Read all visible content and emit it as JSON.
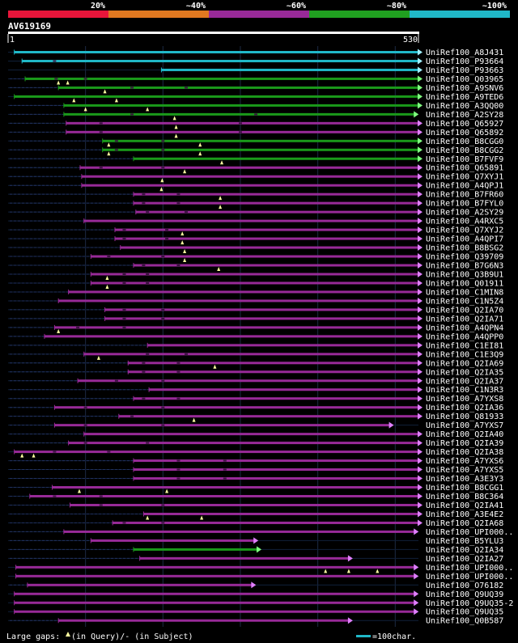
{
  "chart_data": {
    "type": "blast-alignment-overview",
    "query": {
      "name": "AV619169",
      "start_label": "1",
      "end_label": "530",
      "length": 530
    },
    "identity_bins": [
      {
        "label": "20%",
        "color": "#e8153a"
      },
      {
        "label": "~40%",
        "color": "#e07820"
      },
      {
        "label": "~60%",
        "color": "#982a98"
      },
      {
        "label": "~80%",
        "color": "#20a020"
      },
      {
        "label": "~100%",
        "color": "#20b8c8"
      }
    ],
    "hits": [
      {
        "name": "UniRef100_A8J431",
        "qstart": 8,
        "qend": 530,
        "color": "cyan",
        "dashed_left": false,
        "right_arrow": true,
        "gaps": [],
        "breaks": []
      },
      {
        "name": "UniRef100_P93664",
        "qstart": 18,
        "qend": 530,
        "color": "cyan",
        "dashed_left": false,
        "right_arrow": true,
        "gaps": [],
        "breaks": [
          60
        ]
      },
      {
        "name": "UniRef100_P93663",
        "qstart": 198,
        "qend": 530,
        "color": "cyan",
        "dashed_left": false,
        "right_arrow": true,
        "gaps": [],
        "breaks": []
      },
      {
        "name": "UniRef100_Q03965",
        "qstart": 22,
        "qend": 530,
        "color": "green",
        "dashed_left": true,
        "right_arrow": true,
        "gaps": [
          65,
          77
        ],
        "breaks": [
          62,
          100
        ]
      },
      {
        "name": "UniRef100_A9SNV6",
        "qstart": 65,
        "qend": 530,
        "color": "green",
        "dashed_left": true,
        "right_arrow": true,
        "gaps": [
          125
        ],
        "breaks": [
          160,
          230
        ]
      },
      {
        "name": "UniRef100_A9TED6",
        "qstart": 8,
        "qend": 530,
        "color": "green",
        "dashed_left": true,
        "right_arrow": true,
        "gaps": [
          85,
          140
        ],
        "breaks": []
      },
      {
        "name": "UniRef100_A3QQ00",
        "qstart": 72,
        "qend": 530,
        "color": "green",
        "dashed_left": true,
        "right_arrow": true,
        "gaps": [
          100,
          180
        ],
        "breaks": []
      },
      {
        "name": "UniRef100_A2SY28",
        "qstart": 72,
        "qend": 525,
        "color": "green",
        "dashed_left": true,
        "right_arrow": true,
        "gaps": [
          215
        ],
        "breaks": [
          160,
          320
        ]
      },
      {
        "name": "UniRef100_Q65927",
        "qstart": 75,
        "qend": 530,
        "color": "magenta",
        "dashed_left": true,
        "right_arrow": true,
        "gaps": [
          217
        ],
        "breaks": [
          120,
          300
        ]
      },
      {
        "name": "UniRef100_Q65892",
        "qstart": 75,
        "qend": 530,
        "color": "magenta",
        "dashed_left": true,
        "right_arrow": true,
        "gaps": [
          217
        ],
        "breaks": [
          120,
          300
        ]
      },
      {
        "name": "UniRef100_B8CGG0",
        "qstart": 122,
        "qend": 530,
        "color": "green",
        "dashed_left": true,
        "right_arrow": true,
        "gaps": [
          130,
          248
        ],
        "breaks": [
          140,
          200
        ]
      },
      {
        "name": "UniRef100_B8CGG2",
        "qstart": 122,
        "qend": 530,
        "color": "green",
        "dashed_left": true,
        "right_arrow": true,
        "gaps": [
          130,
          248
        ],
        "breaks": [
          140,
          200
        ]
      },
      {
        "name": "UniRef100_B7FVF9",
        "qstart": 162,
        "qend": 530,
        "color": "green",
        "dashed_left": true,
        "right_arrow": true,
        "gaps": [
          276
        ],
        "breaks": []
      },
      {
        "name": "UniRef100_Q65891",
        "qstart": 93,
        "qend": 530,
        "color": "magenta",
        "dashed_left": true,
        "right_arrow": true,
        "gaps": [
          228
        ],
        "breaks": [
          120,
          200
        ]
      },
      {
        "name": "UniRef100_Q7XYJ1",
        "qstart": 95,
        "qend": 530,
        "color": "magenta",
        "dashed_left": true,
        "right_arrow": true,
        "gaps": [
          199
        ],
        "breaks": []
      },
      {
        "name": "UniRef100_A4QPJ1",
        "qstart": 95,
        "qend": 530,
        "color": "magenta",
        "dashed_left": true,
        "right_arrow": true,
        "gaps": [
          198
        ],
        "breaks": []
      },
      {
        "name": "UniRef100_B7FR60",
        "qstart": 162,
        "qend": 530,
        "color": "magenta",
        "dashed_left": true,
        "right_arrow": true,
        "gaps": [
          274
        ],
        "breaks": [
          175,
          220
        ]
      },
      {
        "name": "UniRef100_B7FYL0",
        "qstart": 162,
        "qend": 530,
        "color": "magenta",
        "dashed_left": true,
        "right_arrow": true,
        "gaps": [
          274
        ],
        "breaks": [
          175,
          220
        ]
      },
      {
        "name": "UniRef100_A2SY29",
        "qstart": 165,
        "qend": 530,
        "color": "magenta",
        "dashed_left": true,
        "right_arrow": true,
        "gaps": [],
        "breaks": [
          180,
          230
        ]
      },
      {
        "name": "UniRef100_A4RXC5",
        "qstart": 98,
        "qend": 530,
        "color": "magenta",
        "dashed_left": true,
        "right_arrow": true,
        "gaps": [],
        "breaks": []
      },
      {
        "name": "UniRef100_Q7XYJ2",
        "qstart": 138,
        "qend": 530,
        "color": "magenta",
        "dashed_left": true,
        "right_arrow": true,
        "gaps": [
          225
        ],
        "breaks": [
          150,
          205
        ]
      },
      {
        "name": "UniRef100_A4QPI7",
        "qstart": 138,
        "qend": 530,
        "color": "magenta",
        "dashed_left": true,
        "right_arrow": true,
        "gaps": [
          225
        ],
        "breaks": [
          150,
          205
        ]
      },
      {
        "name": "UniRef100_B8BSG2",
        "qstart": 145,
        "qend": 530,
        "color": "magenta",
        "dashed_left": true,
        "right_arrow": true,
        "gaps": [
          228
        ],
        "breaks": []
      },
      {
        "name": "UniRef100_Q39709",
        "qstart": 107,
        "qend": 530,
        "color": "magenta",
        "dashed_left": true,
        "right_arrow": true,
        "gaps": [
          228
        ],
        "breaks": [
          130,
          200
        ]
      },
      {
        "name": "UniRef100_B7G6N3",
        "qstart": 162,
        "qend": 530,
        "color": "magenta",
        "dashed_left": true,
        "right_arrow": true,
        "gaps": [
          272
        ],
        "breaks": [
          175,
          220
        ]
      },
      {
        "name": "UniRef100_Q3B9U1",
        "qstart": 107,
        "qend": 530,
        "color": "magenta",
        "dashed_left": true,
        "right_arrow": true,
        "gaps": [
          128
        ],
        "breaks": [
          150,
          180
        ]
      },
      {
        "name": "UniRef100_Q01911",
        "qstart": 107,
        "qend": 530,
        "color": "magenta",
        "dashed_left": true,
        "right_arrow": true,
        "gaps": [
          128
        ],
        "breaks": [
          150,
          180
        ]
      },
      {
        "name": "UniRef100_C1MIN8",
        "qstart": 78,
        "qend": 530,
        "color": "magenta",
        "dashed_left": true,
        "right_arrow": true,
        "gaps": [],
        "breaks": []
      },
      {
        "name": "UniRef100_C1N5Z4",
        "qstart": 65,
        "qend": 530,
        "color": "magenta",
        "dashed_left": true,
        "right_arrow": true,
        "gaps": [],
        "breaks": []
      },
      {
        "name": "UniRef100_Q2IA70",
        "qstart": 125,
        "qend": 530,
        "color": "magenta",
        "dashed_left": true,
        "right_arrow": true,
        "gaps": [],
        "breaks": [
          150,
          200
        ]
      },
      {
        "name": "UniRef100_Q2IA71",
        "qstart": 125,
        "qend": 530,
        "color": "magenta",
        "dashed_left": true,
        "right_arrow": true,
        "gaps": [],
        "breaks": [
          150,
          200
        ]
      },
      {
        "name": "UniRef100_A4QPN4",
        "qstart": 60,
        "qend": 530,
        "color": "magenta",
        "dashed_left": true,
        "right_arrow": true,
        "gaps": [
          65
        ],
        "breaks": [
          90,
          150
        ]
      },
      {
        "name": "UniRef100_A4QPP0",
        "qstart": 47,
        "qend": 530,
        "color": "magenta",
        "dashed_left": true,
        "right_arrow": true,
        "gaps": [],
        "breaks": []
      },
      {
        "name": "UniRef100_C1EI81",
        "qstart": 180,
        "qend": 530,
        "color": "magenta",
        "dashed_left": true,
        "right_arrow": true,
        "gaps": [],
        "breaks": []
      },
      {
        "name": "UniRef100_C1E3Q9",
        "qstart": 98,
        "qend": 530,
        "color": "magenta",
        "dashed_left": true,
        "right_arrow": true,
        "gaps": [
          117
        ],
        "breaks": [
          180,
          230
        ]
      },
      {
        "name": "UniRef100_Q2IA69",
        "qstart": 155,
        "qend": 530,
        "color": "magenta",
        "dashed_left": true,
        "right_arrow": true,
        "gaps": [
          267
        ],
        "breaks": [
          175,
          220
        ]
      },
      {
        "name": "UniRef100_Q2IA35",
        "qstart": 155,
        "qend": 530,
        "color": "magenta",
        "dashed_left": true,
        "right_arrow": true,
        "gaps": [],
        "breaks": [
          175,
          220
        ]
      },
      {
        "name": "UniRef100_Q2IA37",
        "qstart": 90,
        "qend": 530,
        "color": "magenta",
        "dashed_left": true,
        "right_arrow": true,
        "gaps": [],
        "breaks": [
          140,
          200
        ]
      },
      {
        "name": "UniRef100_C1N3R3",
        "qstart": 182,
        "qend": 530,
        "color": "magenta",
        "dashed_left": true,
        "right_arrow": true,
        "gaps": [],
        "breaks": []
      },
      {
        "name": "UniRef100_A7YXS8",
        "qstart": 162,
        "qend": 530,
        "color": "magenta",
        "dashed_left": true,
        "right_arrow": true,
        "gaps": [],
        "breaks": [
          175,
          220
        ]
      },
      {
        "name": "UniRef100_Q2IA36",
        "qstart": 60,
        "qend": 530,
        "color": "magenta",
        "dashed_left": true,
        "right_arrow": true,
        "gaps": [],
        "breaks": [
          100,
          200
        ]
      },
      {
        "name": "UniRef100_Q81933",
        "qstart": 143,
        "qend": 530,
        "color": "magenta",
        "dashed_left": true,
        "right_arrow": true,
        "gaps": [
          240
        ],
        "breaks": [
          160
        ]
      },
      {
        "name": "UniRef100_A7YXS7",
        "qstart": 60,
        "qend": 493,
        "color": "magenta",
        "dashed_left": true,
        "right_arrow": true,
        "gaps": [],
        "breaks": [
          100,
          200
        ]
      },
      {
        "name": "UniRef100_Q2IA40",
        "qstart": 98,
        "qend": 530,
        "color": "magenta",
        "dashed_left": true,
        "right_arrow": true,
        "gaps": [],
        "breaks": []
      },
      {
        "name": "UniRef100_Q2IA39",
        "qstart": 78,
        "qend": 530,
        "color": "magenta",
        "dashed_left": true,
        "right_arrow": true,
        "gaps": [],
        "breaks": [
          100,
          180
        ]
      },
      {
        "name": "UniRef100_Q2IA38",
        "qstart": 8,
        "qend": 530,
        "color": "magenta",
        "dashed_left": false,
        "right_arrow": true,
        "gaps": [
          18,
          33
        ],
        "breaks": [
          60,
          130
        ]
      },
      {
        "name": "UniRef100_A7YXS6",
        "qstart": 162,
        "qend": 530,
        "color": "magenta",
        "dashed_left": true,
        "right_arrow": true,
        "gaps": [],
        "breaks": [
          220,
          280
        ]
      },
      {
        "name": "UniRef100_A7YXS5",
        "qstart": 162,
        "qend": 530,
        "color": "magenta",
        "dashed_left": true,
        "right_arrow": true,
        "gaps": [],
        "breaks": [
          220,
          280
        ]
      },
      {
        "name": "UniRef100_A3E3Y3",
        "qstart": 162,
        "qend": 530,
        "color": "magenta",
        "dashed_left": true,
        "right_arrow": true,
        "gaps": [],
        "breaks": [
          220,
          280
        ]
      },
      {
        "name": "UniRef100_B8CGG1",
        "qstart": 57,
        "qend": 530,
        "color": "magenta",
        "dashed_left": true,
        "right_arrow": true,
        "gaps": [
          92,
          205
        ],
        "breaks": []
      },
      {
        "name": "UniRef100_B8C364",
        "qstart": 28,
        "qend": 530,
        "color": "magenta",
        "dashed_left": true,
        "right_arrow": true,
        "gaps": [],
        "breaks": [
          60,
          120
        ]
      },
      {
        "name": "UniRef100_Q2IA41",
        "qstart": 80,
        "qend": 530,
        "color": "magenta",
        "dashed_left": true,
        "right_arrow": true,
        "gaps": [],
        "breaks": [
          120,
          200
        ]
      },
      {
        "name": "UniRef100_A3E4E2",
        "qstart": 175,
        "qend": 530,
        "color": "magenta",
        "dashed_left": true,
        "right_arrow": true,
        "gaps": [
          180,
          250
        ],
        "breaks": []
      },
      {
        "name": "UniRef100_Q2IA68",
        "qstart": 135,
        "qend": 530,
        "color": "magenta",
        "dashed_left": true,
        "right_arrow": true,
        "gaps": [],
        "breaks": [
          150,
          200
        ]
      },
      {
        "name": "UniRef100_UPI000..",
        "qstart": 72,
        "qend": 525,
        "color": "magenta",
        "dashed_left": true,
        "right_arrow": true,
        "gaps": [],
        "breaks": []
      },
      {
        "name": "UniRef100_B5YLU3",
        "qstart": 107,
        "qend": 318,
        "color": "magenta",
        "dashed_left": true,
        "right_arrow": true,
        "gaps": [],
        "breaks": []
      },
      {
        "name": "UniRef100_Q2IA34",
        "qstart": 162,
        "qend": 322,
        "color": "green",
        "dashed_left": true,
        "right_arrow": true,
        "gaps": [],
        "breaks": []
      },
      {
        "name": "UniRef100_Q2IA27",
        "qstart": 170,
        "qend": 440,
        "color": "magenta",
        "dashed_left": true,
        "right_arrow": true,
        "gaps": [],
        "breaks": []
      },
      {
        "name": "UniRef100_UPI000..",
        "qstart": 10,
        "qend": 525,
        "color": "magenta",
        "dashed_left": true,
        "right_arrow": true,
        "gaps": [
          410,
          440,
          477
        ],
        "breaks": []
      },
      {
        "name": "UniRef100_UPI000..",
        "qstart": 10,
        "qend": 525,
        "color": "magenta",
        "dashed_left": true,
        "right_arrow": true,
        "gaps": [],
        "breaks": []
      },
      {
        "name": "UniRef100_O76182",
        "qstart": 25,
        "qend": 315,
        "color": "magenta",
        "dashed_left": true,
        "right_arrow": true,
        "gaps": [],
        "breaks": []
      },
      {
        "name": "UniRef100_Q9UQ39",
        "qstart": 8,
        "qend": 525,
        "color": "magenta",
        "dashed_left": true,
        "right_arrow": true,
        "gaps": [],
        "breaks": []
      },
      {
        "name": "UniRef100_Q9UQ35-2",
        "qstart": 8,
        "qend": 525,
        "color": "magenta",
        "dashed_left": true,
        "right_arrow": true,
        "gaps": [],
        "breaks": []
      },
      {
        "name": "UniRef100_Q9UQ35",
        "qstart": 8,
        "qend": 525,
        "color": "magenta",
        "dashed_left": true,
        "right_arrow": true,
        "gaps": [],
        "breaks": []
      },
      {
        "name": "UniRef100_Q0B587",
        "qstart": 65,
        "qend": 440,
        "color": "magenta",
        "dashed_left": true,
        "right_arrow": true,
        "gaps": [],
        "breaks": []
      }
    ],
    "legend": {
      "gaps_text": "Large gaps:",
      "gaps_detail": "(in Query)/- (in Subject)",
      "scale_text": "=100char."
    }
  },
  "colors": {
    "cyan": "#20b8c8",
    "green": "#1a9a1a",
    "magenta": "#982a98",
    "background": "#000000",
    "text": "#ffffff",
    "guide": "#1c2a44",
    "gap_marker": "#ffffa0",
    "arrow_green": "#80ff80",
    "arrow_magenta": "#e080ff",
    "arrow_cyan": "#a0f0ff"
  }
}
